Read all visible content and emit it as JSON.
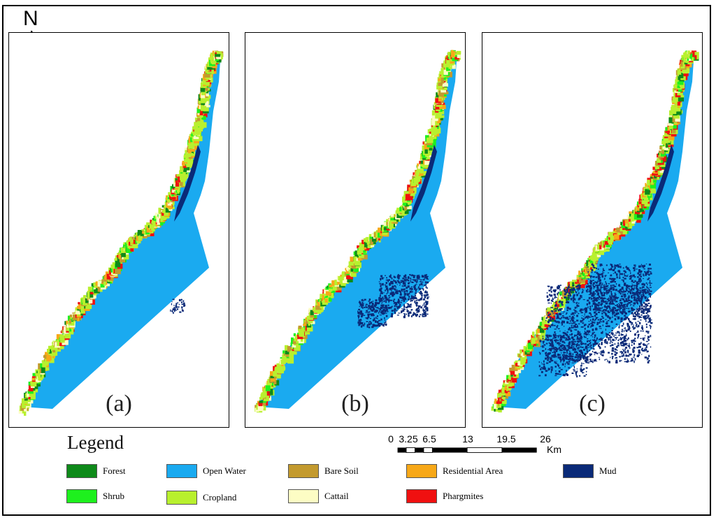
{
  "north_label": "N",
  "panels": [
    {
      "label": "(a)",
      "mud_extent": "low"
    },
    {
      "label": "(b)",
      "mud_extent": "medium"
    },
    {
      "label": "(c)",
      "mud_extent": "high"
    }
  ],
  "legend": {
    "title": "Legend",
    "items": [
      {
        "label": "Forest",
        "color": "#0e8a1a"
      },
      {
        "label": "Open Water",
        "color": "#1aaaf0"
      },
      {
        "label": "Bare Soil",
        "color": "#c39a2e"
      },
      {
        "label": "Residential Area",
        "color": "#f7a818"
      },
      {
        "label": "Mud",
        "color": "#0a2a78"
      },
      {
        "label": "Shrub",
        "color": "#1ef01e"
      },
      {
        "label": "Cropland",
        "color": "#b8f02e"
      },
      {
        "label": "Cattail",
        "color": "#fdfdc4"
      },
      {
        "label": "Phargmites",
        "color": "#f01010"
      }
    ]
  },
  "scale": {
    "ticks": [
      "0",
      "3.25",
      "6.5",
      "13",
      "19.5",
      "26"
    ],
    "unit": "Km"
  }
}
